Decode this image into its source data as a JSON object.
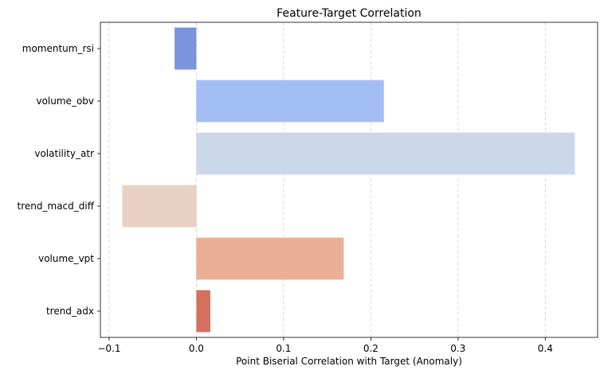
{
  "chart_data": {
    "type": "bar",
    "orientation": "horizontal",
    "title": "Feature-Target Correlation",
    "xlabel": "Point Biserial Correlation with Target (Anomaly)",
    "ylabel": "",
    "categories": [
      "momentum_rsi",
      "volume_obv",
      "volatility_atr",
      "trend_macd_diff",
      "volume_vpt",
      "trend_adx"
    ],
    "values": [
      -0.025,
      0.215,
      0.434,
      -0.085,
      0.169,
      0.016
    ],
    "colors": [
      "#7b94e0",
      "#a3bef5",
      "#cbd8ea",
      "#e8d0c4",
      "#eaaf97",
      "#d6705e"
    ],
    "xlim": [
      -0.11,
      0.46
    ],
    "xticks": [
      -0.1,
      0.0,
      0.1,
      0.2,
      0.3,
      0.4
    ],
    "xtick_labels": [
      "−0.1",
      "0.0",
      "0.1",
      "0.2",
      "0.3",
      "0.4"
    ],
    "grid": "x-dashed"
  }
}
